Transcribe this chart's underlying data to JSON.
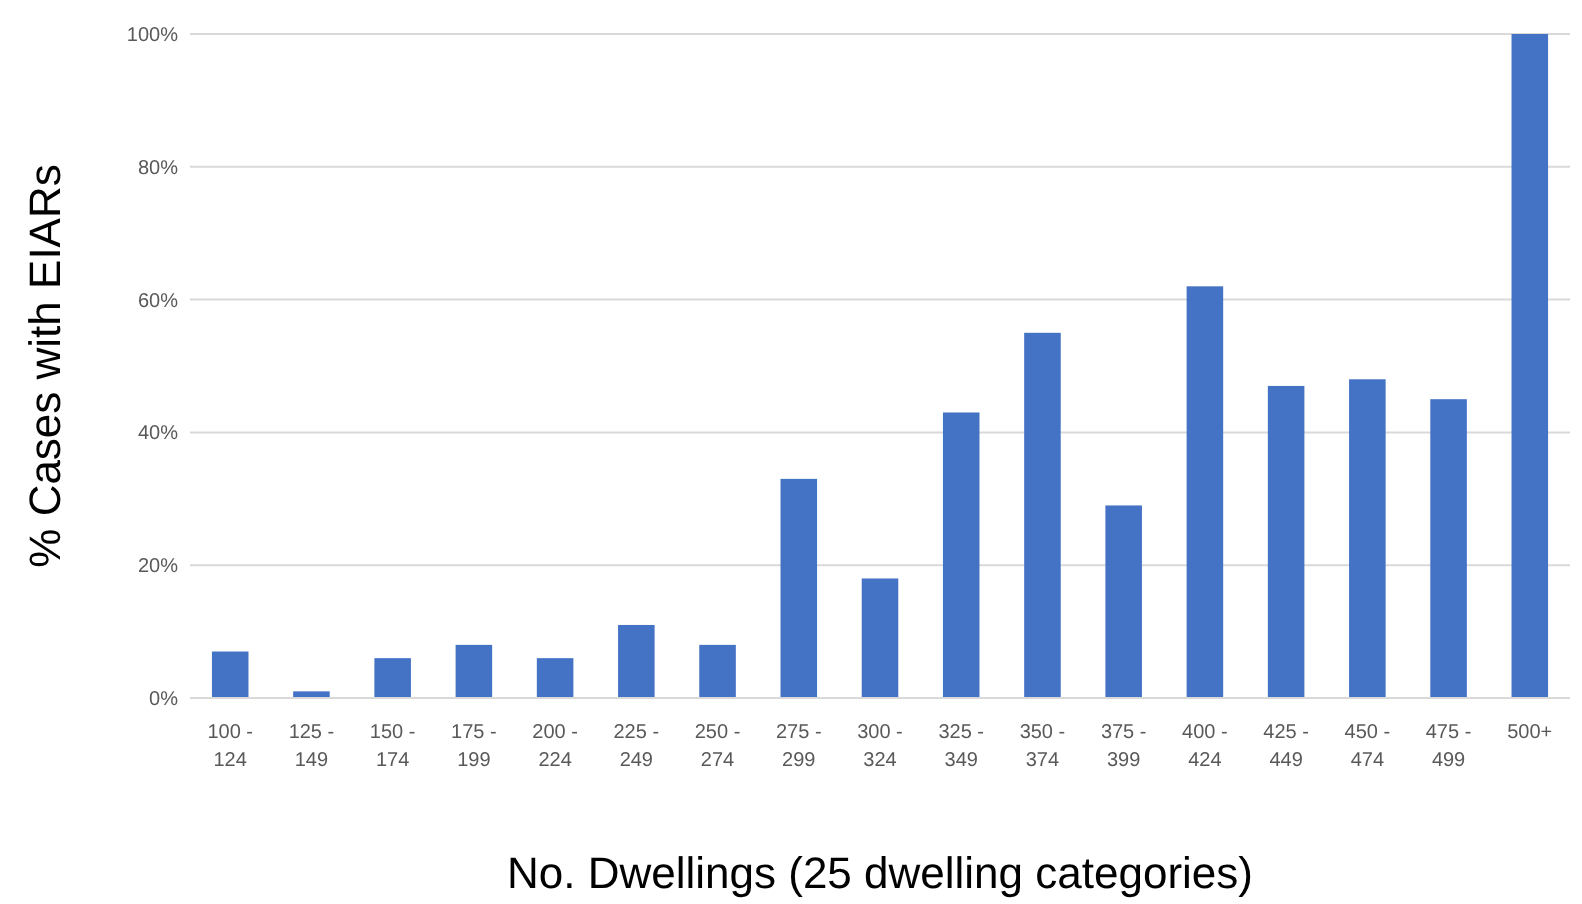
{
  "chart_data": {
    "type": "bar",
    "xlabel": "No. Dwellings (25 dwelling categories)",
    "ylabel": "% Cases with EIARs",
    "categories": [
      "100 - 124",
      "125 - 149",
      "150 - 174",
      "175 - 199",
      "200 - 224",
      "225 - 249",
      "250 - 274",
      "275 - 299",
      "300 - 324",
      "325 - 349",
      "350 - 374",
      "375 - 399",
      "400 - 424",
      "425 - 449",
      "450 - 474",
      "475 - 499",
      "500+"
    ],
    "values": [
      7,
      1,
      6,
      8,
      6,
      11,
      8,
      33,
      18,
      43,
      55,
      29,
      62,
      47,
      48,
      45,
      100
    ],
    "color": "#4472c4",
    "ylim": [
      0,
      100
    ],
    "yticks": [
      {
        "value": 0,
        "label": "0%"
      },
      {
        "value": 20,
        "label": "20%"
      },
      {
        "value": 40,
        "label": "40%"
      },
      {
        "value": 60,
        "label": "60%"
      },
      {
        "value": 80,
        "label": "80%"
      },
      {
        "value": 100,
        "label": "100%"
      }
    ],
    "grid": "y"
  }
}
